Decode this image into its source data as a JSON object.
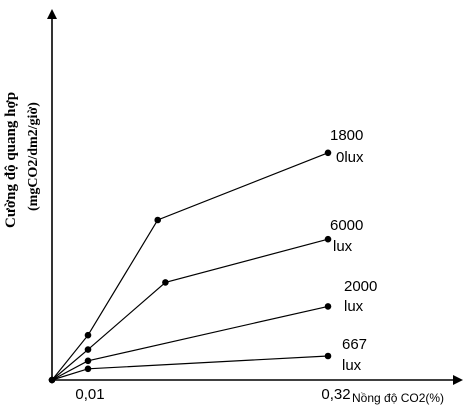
{
  "chart_data": {
    "type": "line",
    "ylabel": "Cường độ quang hợp",
    "yunit": "(mgCO2/dm2/giờ)",
    "xlabel": "Nồng độ CO2(%)",
    "xticks": [
      "0,01",
      "0,32"
    ],
    "series": [
      {
        "label_top": "1800",
        "label_bottom": "0lux",
        "points": [
          [
            0,
            0
          ],
          [
            0.01,
            0.28
          ],
          [
            0.1,
            1.0
          ],
          [
            0.32,
            1.42
          ]
        ]
      },
      {
        "label_top": "6000",
        "label_bottom": "lux",
        "points": [
          [
            0,
            0
          ],
          [
            0.01,
            0.19
          ],
          [
            0.11,
            0.61
          ],
          [
            0.32,
            0.88
          ]
        ]
      },
      {
        "label_top": "2000",
        "label_bottom": "lux",
        "points": [
          [
            0,
            0
          ],
          [
            0.01,
            0.12
          ],
          [
            0.32,
            0.46
          ]
        ]
      },
      {
        "label_top": "667",
        "label_bottom": "lux",
        "points": [
          [
            0,
            0
          ],
          [
            0.01,
            0.07
          ],
          [
            0.32,
            0.15
          ]
        ]
      }
    ]
  }
}
